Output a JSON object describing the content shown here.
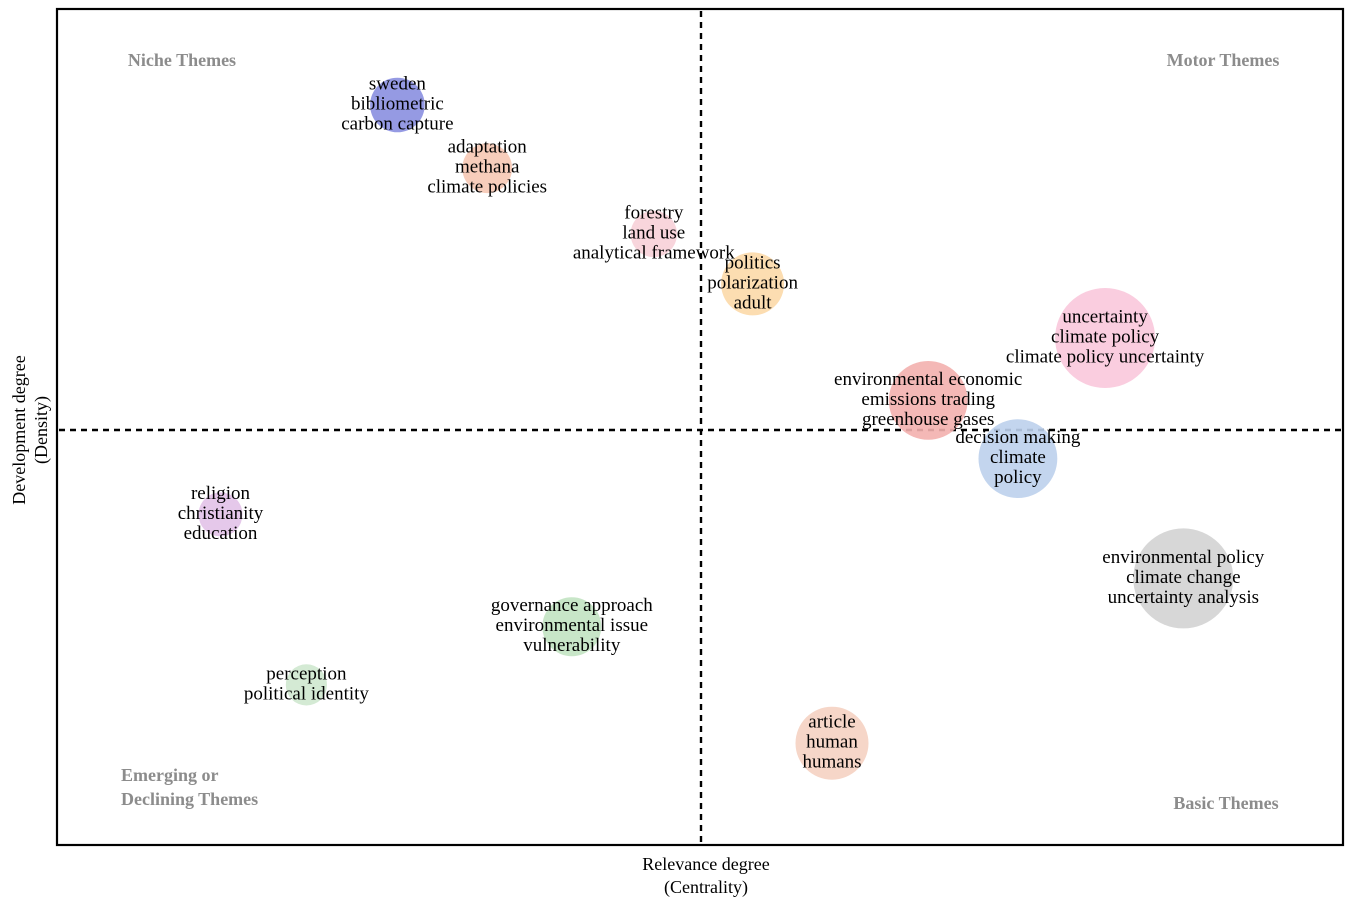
{
  "chart_data": {
    "type": "scatter",
    "xlabel": [
      "Relevance degree",
      "(Centrality)"
    ],
    "ylabel": [
      "Development degree",
      "(Density)"
    ],
    "quadrants": {
      "niche": "Niche Themes",
      "motor": "Motor Themes",
      "emerging": [
        "Emerging or",
        "Declining Themes"
      ],
      "basic": "Basic Themes"
    },
    "grid": false,
    "clusters": [
      {
        "labels": [
          "sweden",
          "bibliometric",
          "carbon capture"
        ],
        "x": 0.264,
        "y": 0.887,
        "size": 0.2,
        "color": "#8a8fe0"
      },
      {
        "labels": [
          "adaptation",
          "methana",
          "climate policies"
        ],
        "x": 0.334,
        "y": 0.811,
        "size": 0.15,
        "color": "#f6c8b4"
      },
      {
        "labels": [
          "forestry",
          "land use",
          "analytical framework"
        ],
        "x": 0.464,
        "y": 0.732,
        "size": 0.12,
        "color": "#f7d0d8"
      },
      {
        "labels": [
          "politics",
          "polarization",
          "adult"
        ],
        "x": 0.541,
        "y": 0.672,
        "size": 0.3,
        "color": "#fcd9a8"
      },
      {
        "labels": [
          "uncertainty",
          "climate policy",
          "climate policy uncertainty"
        ],
        "x": 0.816,
        "y": 0.607,
        "size": 1.0,
        "color": "#f9c8dc"
      },
      {
        "labels": [
          "environmental economic",
          "emissions trading",
          "greenhouse gases"
        ],
        "x": 0.678,
        "y": 0.532,
        "size": 0.55,
        "color": "#f3b0ae"
      },
      {
        "labels": [
          "decision making",
          "climate",
          "policy"
        ],
        "x": 0.748,
        "y": 0.462,
        "size": 0.55,
        "color": "#bcd0ec"
      },
      {
        "labels": [
          "environmental policy",
          "climate change",
          "uncertainty analysis"
        ],
        "x": 0.877,
        "y": 0.318,
        "size": 1.0,
        "color": "#d3d3d3"
      },
      {
        "labels": [
          "religion",
          "christianity",
          "education"
        ],
        "x": 0.126,
        "y": 0.395,
        "size": 0.1,
        "color": "#e2c2e8"
      },
      {
        "labels": [
          "governance approach",
          "environmental issue",
          "vulnerability"
        ],
        "x": 0.4,
        "y": 0.26,
        "size": 0.25,
        "color": "#c2e3c2"
      },
      {
        "labels": [
          "perception",
          "political identity"
        ],
        "x": 0.193,
        "y": 0.19,
        "size": 0.08,
        "color": "#cfe8cf"
      },
      {
        "labels": [
          "article",
          "human",
          "humans"
        ],
        "x": 0.603,
        "y": 0.12,
        "size": 0.45,
        "color": "#f5d2c2"
      }
    ],
    "xlim": [
      0,
      1
    ],
    "ylim": [
      0,
      1
    ],
    "x_divider": 0.5,
    "y_divider": 0.497
  }
}
